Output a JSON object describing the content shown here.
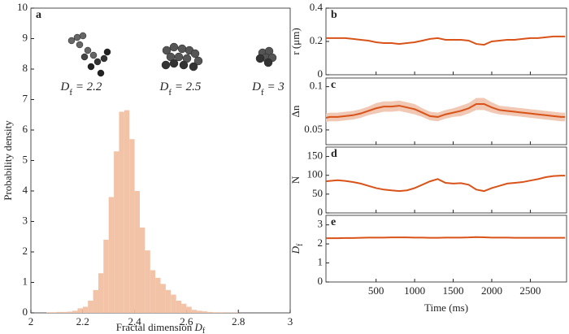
{
  "chart_data": [
    {
      "type": "histogram",
      "label": "a",
      "color": "#f2c3a6",
      "xlabel": {
        "text": "Fractal dimension ",
        "symbol": "D",
        "subscript": "f"
      },
      "ylabel": "Probability density",
      "bins": [
        2.06,
        2.08,
        2.1,
        2.12,
        2.14,
        2.16,
        2.18,
        2.2,
        2.22,
        2.24,
        2.26,
        2.28,
        2.3,
        2.32,
        2.34,
        2.36,
        2.38,
        2.4,
        2.42,
        2.44,
        2.46,
        2.48,
        2.5,
        2.52,
        2.54,
        2.56,
        2.58,
        2.6,
        2.62,
        2.64,
        2.66,
        2.68,
        2.7,
        2.72,
        2.74,
        2.76,
        2.78,
        2.8
      ],
      "counts": [
        0.02,
        0.02,
        0.03,
        0.03,
        0.04,
        0.07,
        0.15,
        0.2,
        0.4,
        0.75,
        1.3,
        2.4,
        3.8,
        5.3,
        6.6,
        6.65,
        5.7,
        4.0,
        2.8,
        2.05,
        1.4,
        1.15,
        0.95,
        0.75,
        0.6,
        0.4,
        0.3,
        0.2,
        0.1,
        0.07,
        0.05,
        0.03,
        0.02,
        0.02,
        0.01,
        0.01,
        0.01
      ],
      "xlim": [
        2,
        3
      ],
      "xticks": [
        2,
        2.2,
        2.4,
        2.6,
        2.8,
        3
      ],
      "ylim": [
        0,
        10
      ],
      "yticks": [
        0,
        1,
        2,
        3,
        4,
        5,
        6,
        7,
        8,
        9,
        10
      ],
      "annotations": [
        {
          "symbol": "D",
          "subscript": "f",
          "text": " = 2.2"
        },
        {
          "symbol": "D",
          "subscript": "f",
          "text": " = 2.5"
        },
        {
          "symbol": "D",
          "subscript": "f",
          "text": " = 3"
        }
      ]
    },
    {
      "type": "line",
      "label": "b",
      "ylabel": "r (μm)",
      "x": [
        -150,
        -100,
        0,
        100,
        200,
        300,
        400,
        500,
        600,
        700,
        800,
        900,
        1000,
        1100,
        1200,
        1300,
        1400,
        1500,
        1600,
        1700,
        1800,
        1900,
        2000,
        2100,
        2200,
        2300,
        2400,
        2500,
        2600,
        2700,
        2800,
        2900,
        2950
      ],
      "series": [
        {
          "color": "#d95319",
          "values": [
            0.22,
            0.22,
            0.22,
            0.22,
            0.215,
            0.21,
            0.205,
            0.195,
            0.19,
            0.19,
            0.185,
            0.19,
            0.195,
            0.205,
            0.215,
            0.22,
            0.21,
            0.21,
            0.21,
            0.205,
            0.185,
            0.18,
            0.2,
            0.205,
            0.21,
            0.21,
            0.215,
            0.22,
            0.22,
            0.225,
            0.23,
            0.23,
            0.23
          ]
        }
      ],
      "xlim": [
        -150,
        2970
      ],
      "xticks": [
        500,
        1000,
        1500,
        2000,
        2500
      ],
      "show_xtick_labels": false,
      "ylim": [
        0,
        0.4
      ],
      "yticks": [
        0,
        0.2,
        0.4
      ]
    },
    {
      "type": "line",
      "label": "c",
      "ylabel": "Δn",
      "x": [
        -150,
        -100,
        0,
        100,
        200,
        300,
        400,
        500,
        600,
        700,
        800,
        900,
        1000,
        1100,
        1200,
        1300,
        1400,
        1500,
        1600,
        1700,
        1800,
        1900,
        2000,
        2100,
        2200,
        2300,
        2400,
        2500,
        2600,
        2700,
        2800,
        2900,
        2950
      ],
      "series": [
        {
          "color": "#d95319",
          "band_color": "#f0c8b4",
          "values": [
            0.064,
            0.065,
            0.065,
            0.066,
            0.067,
            0.069,
            0.072,
            0.075,
            0.077,
            0.077,
            0.078,
            0.076,
            0.074,
            0.07,
            0.066,
            0.065,
            0.068,
            0.07,
            0.072,
            0.075,
            0.08,
            0.08,
            0.076,
            0.073,
            0.072,
            0.071,
            0.07,
            0.069,
            0.068,
            0.067,
            0.066,
            0.065,
            0.065
          ],
          "errors": [
            0.005,
            0.005,
            0.005,
            0.005,
            0.005,
            0.005,
            0.005,
            0.006,
            0.006,
            0.006,
            0.006,
            0.006,
            0.006,
            0.005,
            0.005,
            0.005,
            0.005,
            0.005,
            0.006,
            0.006,
            0.007,
            0.007,
            0.006,
            0.005,
            0.005,
            0.005,
            0.005,
            0.005,
            0.005,
            0.005,
            0.005,
            0.005,
            0.005
          ]
        }
      ],
      "xlim": [
        -150,
        2970
      ],
      "xticks": [
        500,
        1000,
        1500,
        2000,
        2500
      ],
      "show_xtick_labels": false,
      "ylim": [
        0.033,
        0.11
      ],
      "yticks": [
        0.05,
        0.1
      ]
    },
    {
      "type": "line",
      "label": "d",
      "ylabel": "N",
      "x": [
        -150,
        -100,
        0,
        100,
        200,
        300,
        400,
        500,
        600,
        700,
        800,
        900,
        1000,
        1100,
        1200,
        1300,
        1400,
        1500,
        1600,
        1700,
        1800,
        1900,
        2000,
        2100,
        2200,
        2300,
        2400,
        2500,
        2600,
        2700,
        2800,
        2900,
        2950
      ],
      "series": [
        {
          "color": "#d95319",
          "values": [
            84,
            85,
            87,
            85,
            82,
            78,
            72,
            66,
            62,
            60,
            58,
            60,
            66,
            75,
            84,
            90,
            80,
            78,
            79,
            75,
            62,
            58,
            66,
            72,
            78,
            80,
            82,
            86,
            90,
            95,
            98,
            99,
            99
          ]
        }
      ],
      "xlim": [
        -150,
        2970
      ],
      "xticks": [
        500,
        1000,
        1500,
        2000,
        2500
      ],
      "show_xtick_labels": false,
      "ylim": [
        0,
        175
      ],
      "yticks": [
        0,
        50,
        100,
        150
      ]
    },
    {
      "type": "line",
      "label": "e",
      "ylabel": {
        "symbol": "D",
        "subscript": "f"
      },
      "xlabel": "Time (ms)",
      "x": [
        -150,
        -100,
        0,
        100,
        200,
        300,
        400,
        500,
        600,
        700,
        800,
        900,
        1000,
        1100,
        1200,
        1300,
        1400,
        1500,
        1600,
        1700,
        1800,
        1900,
        2000,
        2100,
        2200,
        2300,
        2400,
        2500,
        2600,
        2700,
        2800,
        2900,
        2950
      ],
      "series": [
        {
          "color": "#d95319",
          "values": [
            2.3,
            2.3,
            2.3,
            2.31,
            2.31,
            2.32,
            2.33,
            2.33,
            2.33,
            2.34,
            2.34,
            2.34,
            2.33,
            2.33,
            2.32,
            2.32,
            2.33,
            2.33,
            2.33,
            2.34,
            2.36,
            2.35,
            2.33,
            2.33,
            2.33,
            2.32,
            2.32,
            2.32,
            2.32,
            2.32,
            2.32,
            2.32,
            2.32
          ]
        }
      ],
      "xlim": [
        -150,
        2970
      ],
      "xticks": [
        500,
        1000,
        1500,
        2000,
        2500
      ],
      "show_xtick_labels": true,
      "ylim": [
        0,
        3.5
      ],
      "yticks": [
        0,
        1,
        2,
        3
      ]
    }
  ]
}
